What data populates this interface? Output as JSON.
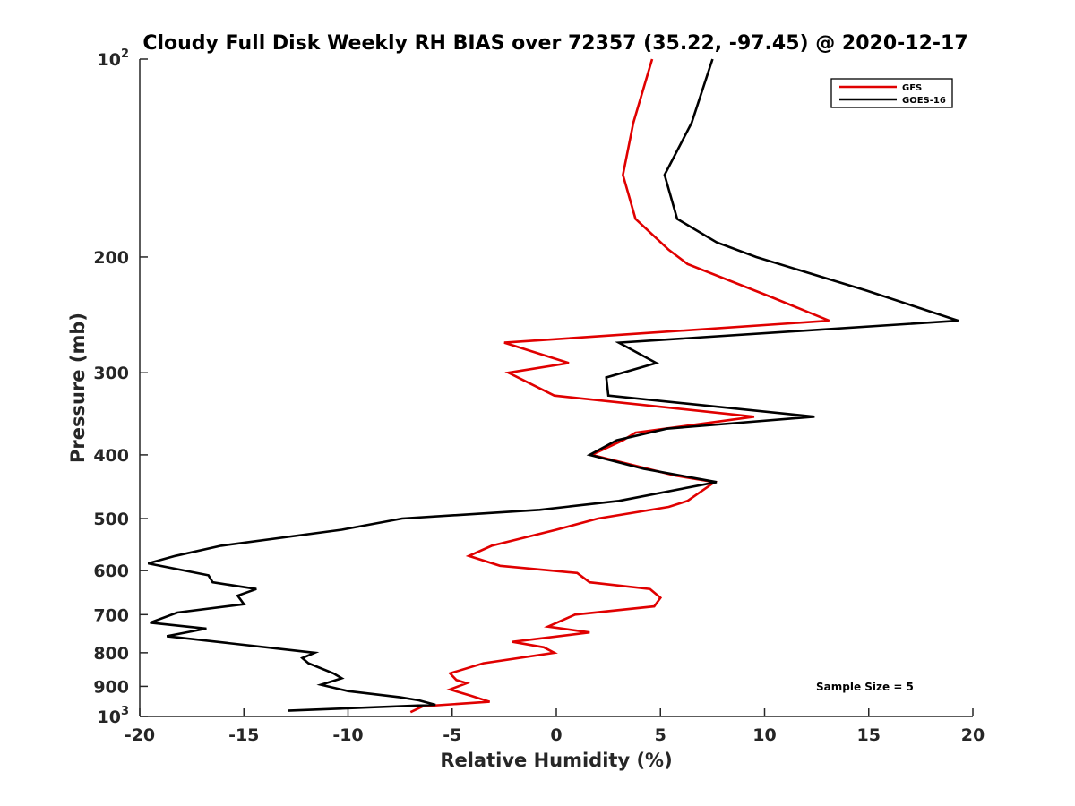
{
  "chart_data": {
    "type": "line",
    "title": "Cloudy Full Disk Weekly RH BIAS over 72357 (35.22, -97.45) @ 2020-12-17",
    "xlabel": "Relative Humidity (%)",
    "ylabel": "Pressure (mb)",
    "xlim": [
      -20,
      20
    ],
    "ylim": [
      1000,
      100
    ],
    "yscale": "log",
    "grid": false,
    "legend_position": "top-right",
    "x_ticks": [
      "-20",
      "-15",
      "-10",
      "-5",
      "0",
      "5",
      "10",
      "15",
      "20"
    ],
    "y_ticks": [
      {
        "value": 100,
        "base": "10",
        "exp": "2"
      },
      {
        "value": 200,
        "label": "200"
      },
      {
        "value": 300,
        "label": "300"
      },
      {
        "value": 400,
        "label": "400"
      },
      {
        "value": 500,
        "label": "500"
      },
      {
        "value": 600,
        "label": "600"
      },
      {
        "value": 700,
        "label": "700"
      },
      {
        "value": 800,
        "label": "800"
      },
      {
        "value": 900,
        "label": "900"
      },
      {
        "value": 1000,
        "base": "10",
        "exp": "3"
      }
    ],
    "annotation": "Sample Size = 5",
    "series": [
      {
        "name": "GFS",
        "color": "#e00000",
        "points": [
          [
            4.6,
            100
          ],
          [
            3.7,
            125
          ],
          [
            3.2,
            150
          ],
          [
            3.8,
            175
          ],
          [
            5.4,
            195
          ],
          [
            6.3,
            205
          ],
          [
            10.3,
            230
          ],
          [
            13.1,
            250
          ],
          [
            -2.5,
            270
          ],
          [
            0.6,
            290
          ],
          [
            -2.3,
            300
          ],
          [
            -0.1,
            325
          ],
          [
            9.5,
            350
          ],
          [
            3.8,
            370
          ],
          [
            3.2,
            380
          ],
          [
            1.7,
            400
          ],
          [
            5.7,
            430
          ],
          [
            7.6,
            440
          ],
          [
            6.3,
            470
          ],
          [
            5.4,
            480
          ],
          [
            2.0,
            500
          ],
          [
            0.0,
            520
          ],
          [
            -3.1,
            550
          ],
          [
            -4.2,
            570
          ],
          [
            -2.7,
            590
          ],
          [
            1.0,
            605
          ],
          [
            1.6,
            625
          ],
          [
            4.5,
            640
          ],
          [
            5.0,
            660
          ],
          [
            4.7,
            680
          ],
          [
            0.9,
            700
          ],
          [
            -0.4,
            730
          ],
          [
            1.6,
            745
          ],
          [
            -2.1,
            770
          ],
          [
            -0.6,
            785
          ],
          [
            -0.1,
            800
          ],
          [
            -3.5,
            830
          ],
          [
            -5.1,
            860
          ],
          [
            -4.8,
            880
          ],
          [
            -4.3,
            890
          ],
          [
            -5.1,
            910
          ],
          [
            -4.1,
            930
          ],
          [
            -3.2,
            950
          ],
          [
            -6.4,
            965
          ],
          [
            -7.0,
            985
          ]
        ]
      },
      {
        "name": "GOES-16",
        "color": "#000000",
        "points": [
          [
            7.5,
            100
          ],
          [
            6.5,
            125
          ],
          [
            5.2,
            150
          ],
          [
            5.8,
            175
          ],
          [
            7.7,
            190
          ],
          [
            9.6,
            200
          ],
          [
            14.9,
            225
          ],
          [
            19.3,
            250
          ],
          [
            3.0,
            270
          ],
          [
            4.8,
            290
          ],
          [
            2.4,
            305
          ],
          [
            2.5,
            325
          ],
          [
            12.4,
            350
          ],
          [
            5.3,
            365
          ],
          [
            2.9,
            380
          ],
          [
            1.6,
            400
          ],
          [
            4.2,
            420
          ],
          [
            7.7,
            440
          ],
          [
            3.0,
            470
          ],
          [
            -0.8,
            485
          ],
          [
            -7.4,
            500
          ],
          [
            -10.3,
            520
          ],
          [
            -16.1,
            550
          ],
          [
            -18.3,
            570
          ],
          [
            -19.6,
            585
          ],
          [
            -16.7,
            610
          ],
          [
            -16.5,
            625
          ],
          [
            -14.4,
            640
          ],
          [
            -15.3,
            655
          ],
          [
            -15.0,
            675
          ],
          [
            -18.2,
            695
          ],
          [
            -19.5,
            720
          ],
          [
            -16.8,
            735
          ],
          [
            -18.7,
            755
          ],
          [
            -11.6,
            800
          ],
          [
            -12.2,
            815
          ],
          [
            -11.9,
            830
          ],
          [
            -10.7,
            860
          ],
          [
            -10.3,
            875
          ],
          [
            -11.3,
            895
          ],
          [
            -10.0,
            915
          ],
          [
            -7.5,
            935
          ],
          [
            -6.6,
            945
          ],
          [
            -5.8,
            960
          ],
          [
            -12.9,
            980
          ]
        ]
      }
    ]
  }
}
